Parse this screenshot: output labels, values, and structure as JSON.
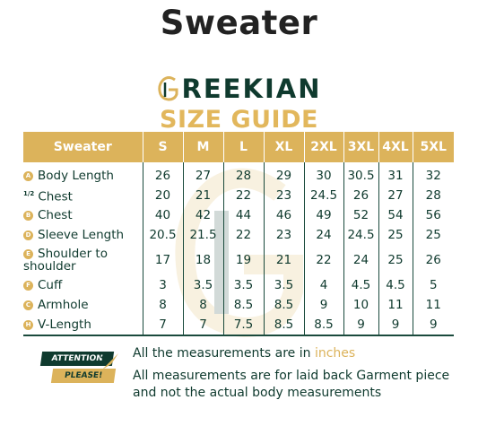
{
  "title": "Sweater",
  "brand": {
    "name": "REEKIAN",
    "subtitle": "SIZE GUIDE"
  },
  "table": {
    "header_label": "Sweater",
    "sizes": [
      "S",
      "M",
      "L",
      "XL",
      "2XL",
      "3XL",
      "4XL",
      "5XL"
    ],
    "rows": [
      {
        "badge": "A",
        "label": "Body Length",
        "values": [
          "26",
          "27",
          "28",
          "29",
          "30",
          "30.5",
          "31",
          "32"
        ]
      },
      {
        "badge": "1/2",
        "label": "Chest",
        "values": [
          "20",
          "21",
          "22",
          "23",
          "24.5",
          "26",
          "27",
          "28"
        ]
      },
      {
        "badge": "B",
        "label": "Chest",
        "values": [
          "40",
          "42",
          "44",
          "46",
          "49",
          "52",
          "54",
          "56"
        ]
      },
      {
        "badge": "D",
        "label": "Sleeve Length",
        "values": [
          "20.5",
          "21.5",
          "22",
          "23",
          "24",
          "24.5",
          "25",
          "25"
        ]
      },
      {
        "badge": "E",
        "label": "Shoulder to shoulder",
        "values": [
          "17",
          "18",
          "19",
          "21",
          "22",
          "24",
          "25",
          "26"
        ]
      },
      {
        "badge": "F",
        "label": "Cuff",
        "values": [
          "3",
          "3.5",
          "3.5",
          "3.5",
          "4",
          "4.5",
          "4.5",
          "5"
        ]
      },
      {
        "badge": "C",
        "label": "Armhole",
        "values": [
          "8",
          "8",
          "8.5",
          "8.5",
          "9",
          "10",
          "11",
          "11"
        ]
      },
      {
        "badge": "H",
        "label": "V-Length",
        "values": [
          "7",
          "7",
          "7.5",
          "8.5",
          "8.5",
          "9",
          "9",
          "9"
        ]
      }
    ]
  },
  "attention": {
    "line1": "ATTENTION",
    "line2": "PLEASE!"
  },
  "notes": {
    "line1_prefix": "All the measurements are in ",
    "line1_unit": "inches",
    "line2": "All measurements are for laid back Garment piece and not the actual body measurements"
  },
  "colors": {
    "gold": "#dcb35b",
    "dark_green": "#0f3a2e"
  }
}
